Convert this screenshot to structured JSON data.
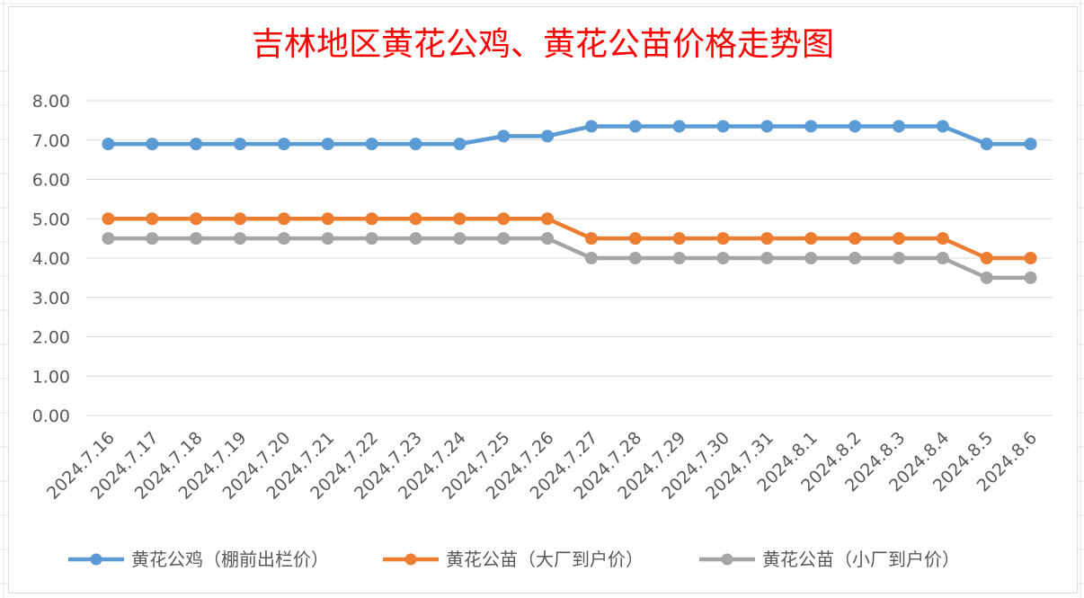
{
  "chart_data": {
    "type": "line",
    "title": "吉林地区黄花公鸡、黄花公苗价格走势图",
    "title_color": "#ff0000",
    "xlabel": "",
    "ylabel": "",
    "ylim": [
      0,
      8
    ],
    "yticks": [
      "0.00",
      "1.00",
      "2.00",
      "3.00",
      "4.00",
      "5.00",
      "6.00",
      "7.00",
      "8.00"
    ],
    "grid": true,
    "legend_position": "bottom",
    "categories": [
      "2024.7.16",
      "2024.7.17",
      "2024.7.18",
      "2024.7.19",
      "2024.7.20",
      "2024.7.21",
      "2024.7.22",
      "2024.7.23",
      "2024.7.24",
      "2024.7.25",
      "2024.7.26",
      "2024.7.27",
      "2024.7.28",
      "2024.7.29",
      "2024.7.30",
      "2024.7.31",
      "2024.8.1",
      "2024.8.2",
      "2024.8.3",
      "2024.8.4",
      "2024.8.5",
      "2024.8.6"
    ],
    "series": [
      {
        "name": "黄花公鸡（棚前出栏价）",
        "color": "#5b9bd5",
        "values": [
          6.9,
          6.9,
          6.9,
          6.9,
          6.9,
          6.9,
          6.9,
          6.9,
          6.9,
          7.1,
          7.1,
          7.35,
          7.35,
          7.35,
          7.35,
          7.35,
          7.35,
          7.35,
          7.35,
          7.35,
          6.9,
          6.9
        ]
      },
      {
        "name": "黄花公苗（大厂到户价）",
        "color": "#ed7d31",
        "values": [
          5.0,
          5.0,
          5.0,
          5.0,
          5.0,
          5.0,
          5.0,
          5.0,
          5.0,
          5.0,
          5.0,
          4.5,
          4.5,
          4.5,
          4.5,
          4.5,
          4.5,
          4.5,
          4.5,
          4.5,
          4.0,
          4.0
        ]
      },
      {
        "name": "黄花公苗（小厂到户价）",
        "color": "#a5a5a5",
        "values": [
          4.5,
          4.5,
          4.5,
          4.5,
          4.5,
          4.5,
          4.5,
          4.5,
          4.5,
          4.5,
          4.5,
          4.0,
          4.0,
          4.0,
          4.0,
          4.0,
          4.0,
          4.0,
          4.0,
          4.0,
          3.5,
          3.5
        ]
      }
    ]
  }
}
